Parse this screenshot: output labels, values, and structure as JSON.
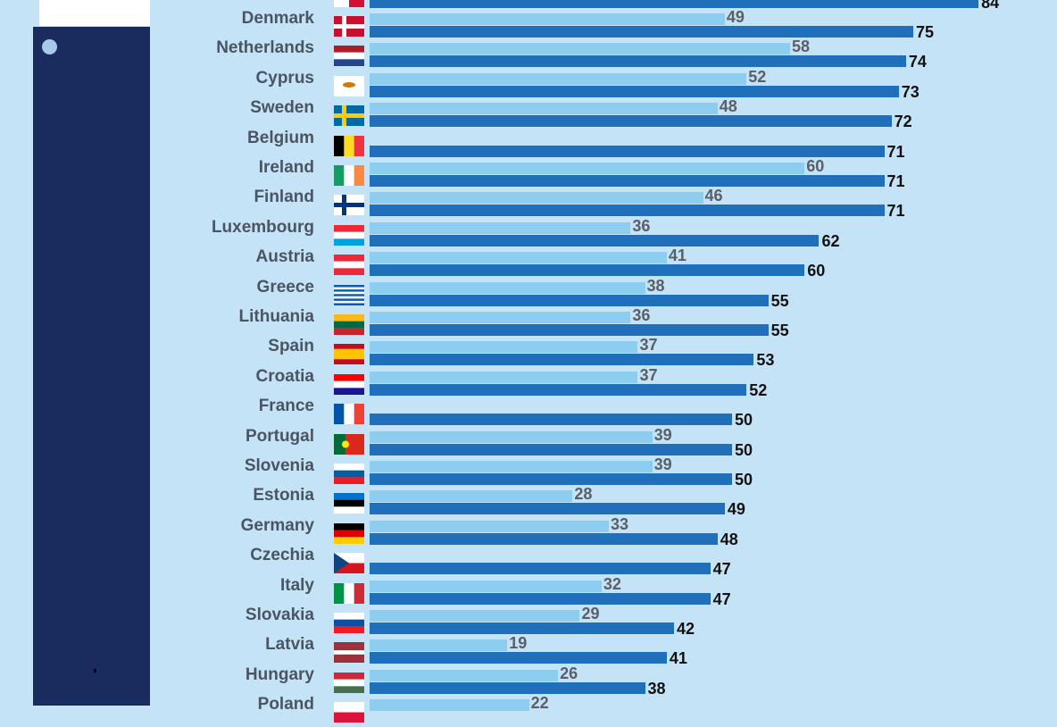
{
  "chart_data": {
    "type": "bar",
    "orientation": "horizontal",
    "colors": {
      "light_series": "#8ccdf0",
      "dark_series": "#1f6fba"
    },
    "categories": [
      "",
      "Denmark",
      "Netherlands",
      "Cyprus",
      "Sweden",
      "Belgium",
      "Ireland",
      "Finland",
      "Luxembourg",
      "Austria",
      "Greece",
      "Lithuania",
      "Spain",
      "Croatia",
      "France",
      "Portugal",
      "Slovenia",
      "Estonia",
      "Germany",
      "Czechia",
      "Italy",
      "Slovakia",
      "Latvia",
      "Hungary",
      "Poland"
    ],
    "flags": [
      "malta-flag-icon",
      "denmark-flag-icon",
      "netherlands-flag-icon",
      "cyprus-flag-icon",
      "sweden-flag-icon",
      "belgium-flag-icon",
      "ireland-flag-icon",
      "finland-flag-icon",
      "luxembourg-flag-icon",
      "austria-flag-icon",
      "greece-flag-icon",
      "lithuania-flag-icon",
      "spain-flag-icon",
      "croatia-flag-icon",
      "france-flag-icon",
      "portugal-flag-icon",
      "slovenia-flag-icon",
      "estonia-flag-icon",
      "germany-flag-icon",
      "czechia-flag-icon",
      "italy-flag-icon",
      "slovakia-flag-icon",
      "latvia-flag-icon",
      "hungary-flag-icon",
      "poland-flag-icon"
    ],
    "series": [
      {
        "values": [
          null,
          49,
          58,
          52,
          48,
          null,
          60,
          46,
          36,
          41,
          38,
          36,
          37,
          37,
          null,
          39,
          39,
          28,
          33,
          null,
          32,
          29,
          19,
          26,
          22
        ]
      },
      {
        "values": [
          84,
          75,
          74,
          73,
          72,
          71,
          71,
          71,
          62,
          60,
          55,
          55,
          53,
          52,
          50,
          50,
          50,
          49,
          48,
          47,
          47,
          42,
          41,
          38,
          null
        ]
      }
    ]
  }
}
